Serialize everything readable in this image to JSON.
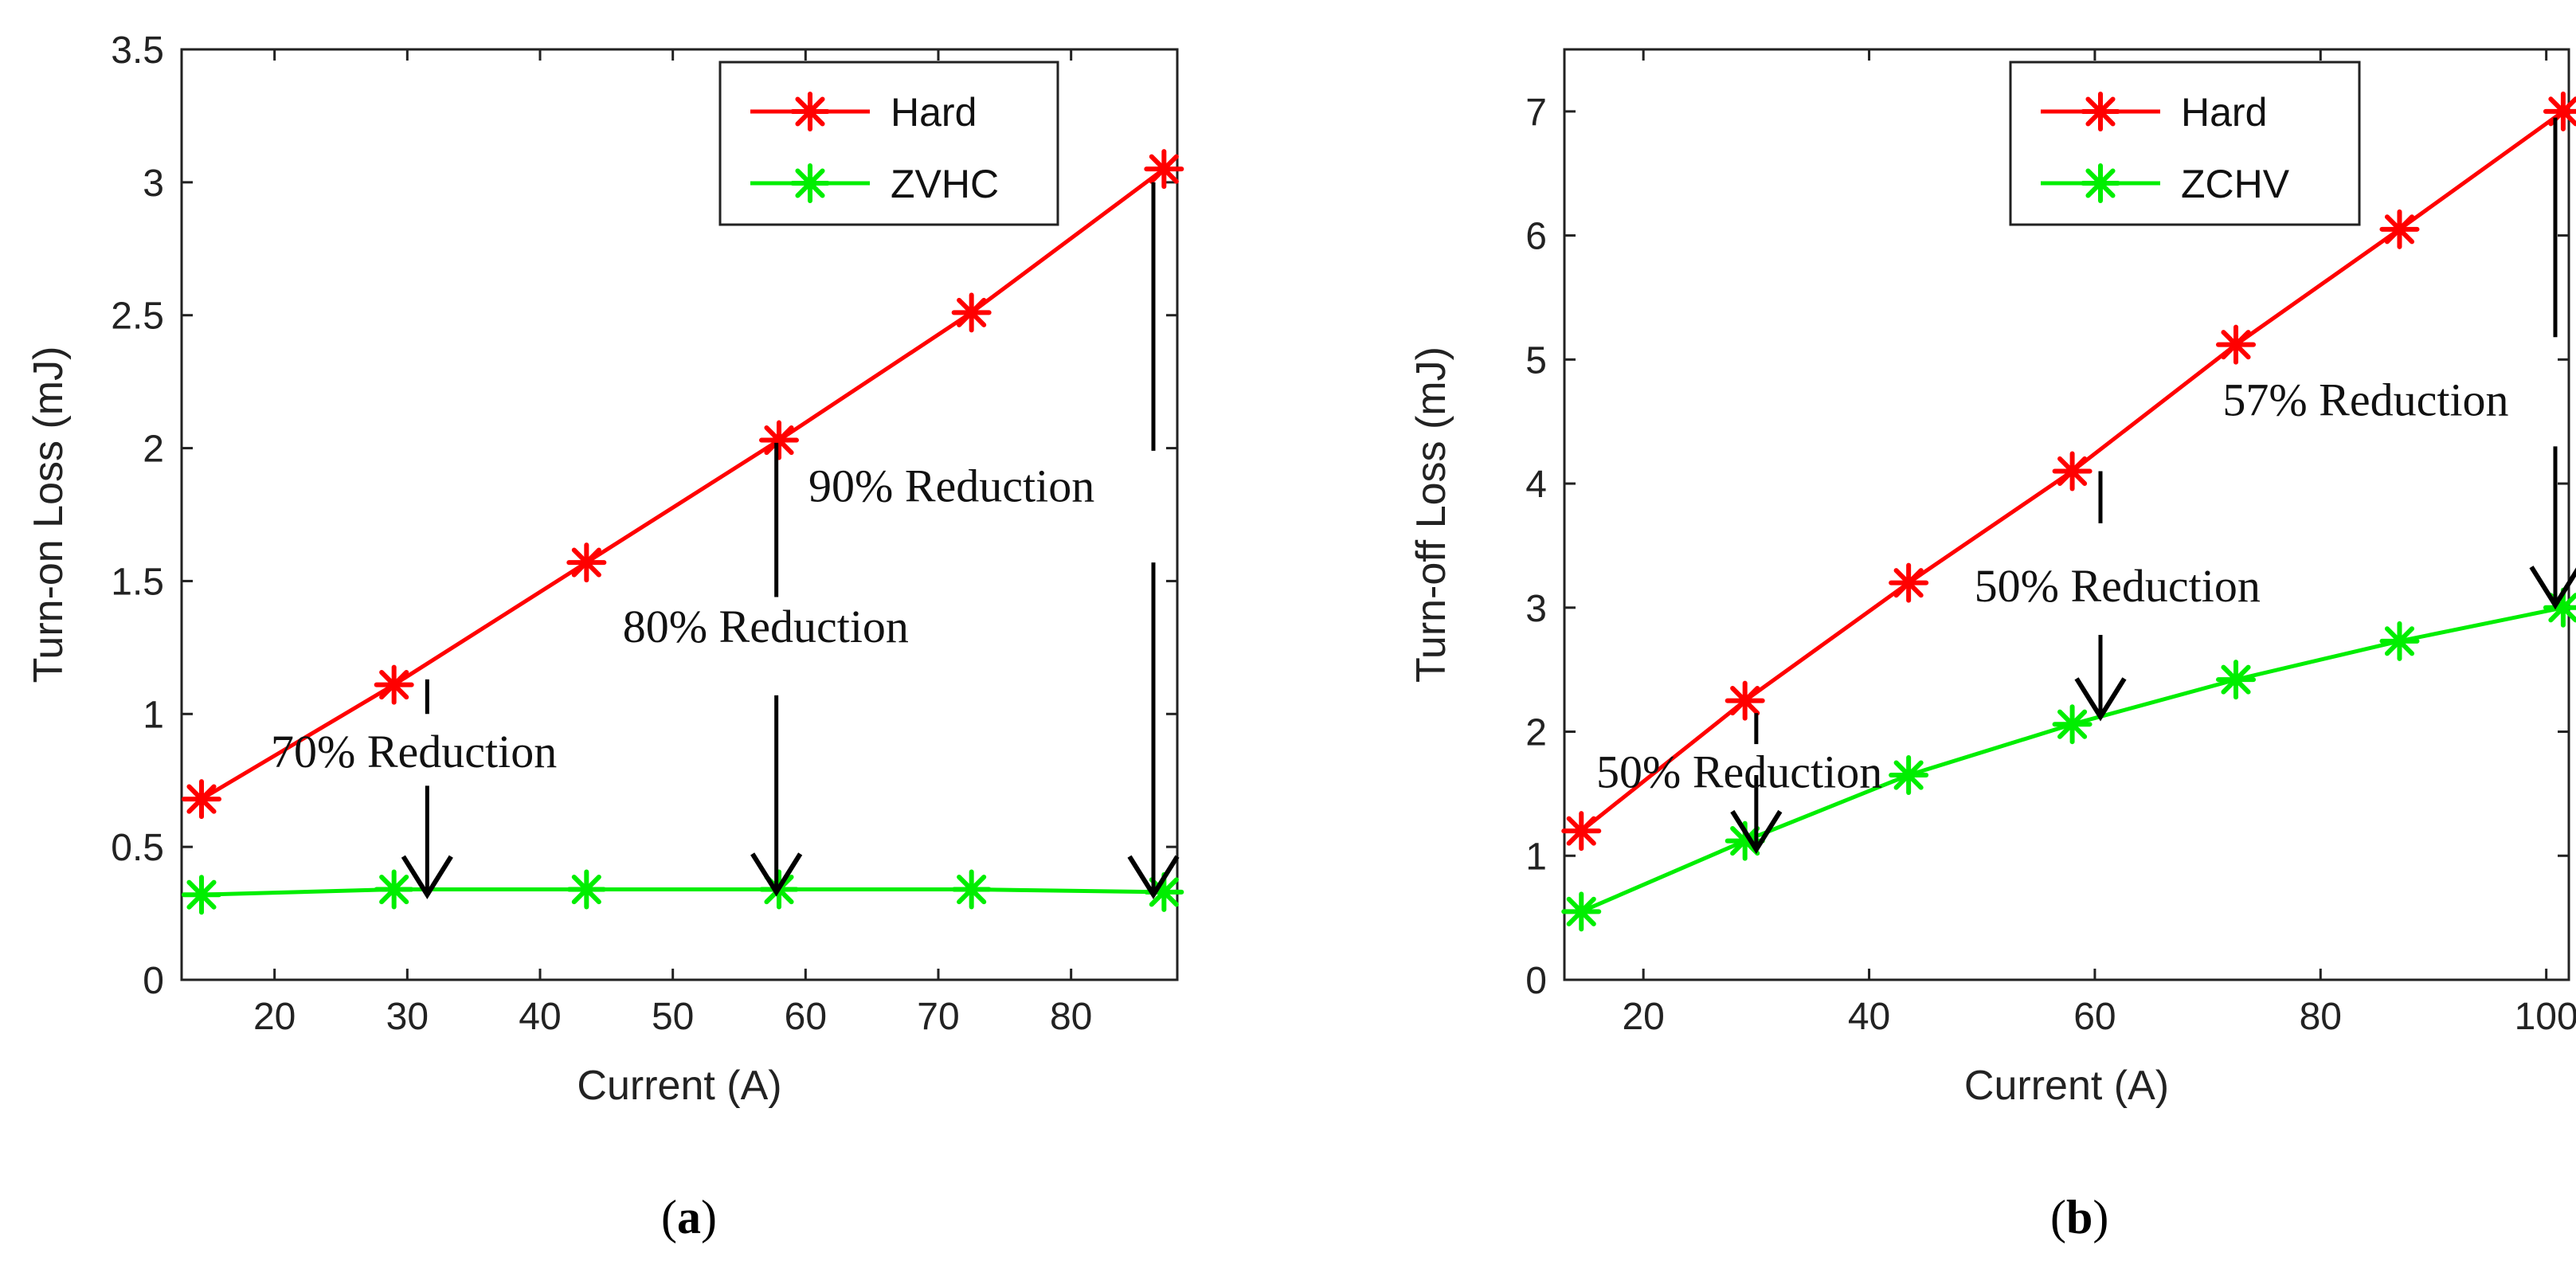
{
  "chart_data": [
    {
      "type": "line",
      "panel": "a",
      "caption_open": "(",
      "caption_letter": "a",
      "caption_close": ")",
      "xlabel": "Current (A)",
      "ylabel": "Turn-on Loss (mJ)",
      "xlim": [
        13,
        88
      ],
      "ylim": [
        0,
        3.5
      ],
      "xticks": [
        20,
        30,
        40,
        50,
        60,
        70,
        80
      ],
      "yticks": [
        0,
        0.5,
        1,
        1.5,
        2,
        2.5,
        3,
        3.5
      ],
      "ytick_labels": [
        "0",
        "0.5",
        "1",
        "1.5",
        "2",
        "2.5",
        "3",
        "3.5"
      ],
      "legend_position": "top-right",
      "series": [
        {
          "name": "Hard",
          "color": "#ff0000",
          "x": [
            14.5,
            29,
            43.5,
            58,
            72.5,
            87
          ],
          "values": [
            0.68,
            1.11,
            1.57,
            2.03,
            2.51,
            3.05
          ]
        },
        {
          "name": "ZVHC",
          "color": "#00ee00",
          "x": [
            14.5,
            29,
            43.5,
            58,
            72.5,
            87
          ],
          "values": [
            0.32,
            0.34,
            0.34,
            0.34,
            0.34,
            0.33
          ]
        }
      ],
      "annotations": [
        {
          "text": "70% Reduction",
          "x": 30.5,
          "y": 0.8
        },
        {
          "text": "80% Reduction",
          "x": 57,
          "y": 1.27
        },
        {
          "text": "90% Reduction",
          "x": 71,
          "y": 1.8
        }
      ],
      "arrows": [
        {
          "x": 31.5,
          "y_from": 1.13,
          "y_to": 0.32,
          "gap": [
            1.0,
            0.73
          ]
        },
        {
          "x": 57.8,
          "y_from": 2.02,
          "y_to": 0.33,
          "gap": [
            1.44,
            1.07
          ]
        },
        {
          "x": 86.2,
          "y_from": 3.0,
          "y_to": 0.32,
          "gap": [
            1.99,
            1.57
          ]
        }
      ]
    },
    {
      "type": "line",
      "panel": "b",
      "caption_open": "(",
      "caption_letter": "b",
      "caption_close": ")",
      "xlabel": "Current (A)",
      "ylabel": "Turn-off Loss (mJ)",
      "xlim": [
        13,
        102
      ],
      "ylim": [
        0,
        7.5
      ],
      "xticks": [
        20,
        40,
        60,
        80,
        100
      ],
      "yticks": [
        0,
        1,
        2,
        3,
        4,
        5,
        6,
        7
      ],
      "ytick_labels": [
        "0",
        "1",
        "2",
        "3",
        "4",
        "5",
        "6",
        "7"
      ],
      "legend_position": "top-center",
      "series": [
        {
          "name": "Hard",
          "color": "#ff0000",
          "x": [
            14.5,
            29,
            43.5,
            58,
            72.5,
            87,
            101.5
          ],
          "values": [
            1.2,
            2.25,
            3.2,
            4.1,
            5.12,
            6.05,
            7.0
          ]
        },
        {
          "name": "ZCHV",
          "color": "#00ee00",
          "x": [
            14.5,
            29,
            43.5,
            58,
            72.5,
            87,
            101.5
          ],
          "values": [
            0.55,
            1.12,
            1.65,
            2.06,
            2.42,
            2.73,
            3.0
          ]
        }
      ],
      "annotations": [
        {
          "text": "50% Reduction",
          "x": 28.5,
          "y": 1.55
        },
        {
          "text": "50% Reduction",
          "x": 62,
          "y": 3.05
        },
        {
          "text": "57% Reduction",
          "x": 84,
          "y": 4.55
        }
      ],
      "arrows": [
        {
          "x": 30,
          "y_from": 2.15,
          "y_to": 1.05,
          "gap": [
            1.9,
            1.65
          ]
        },
        {
          "x": 60.5,
          "y_from": 4.1,
          "y_to": 2.12,
          "gap": [
            3.68,
            2.78
          ]
        },
        {
          "x": 100.8,
          "y_from": 6.95,
          "y_to": 3.02,
          "gap": [
            5.18,
            4.3
          ]
        }
      ]
    }
  ]
}
